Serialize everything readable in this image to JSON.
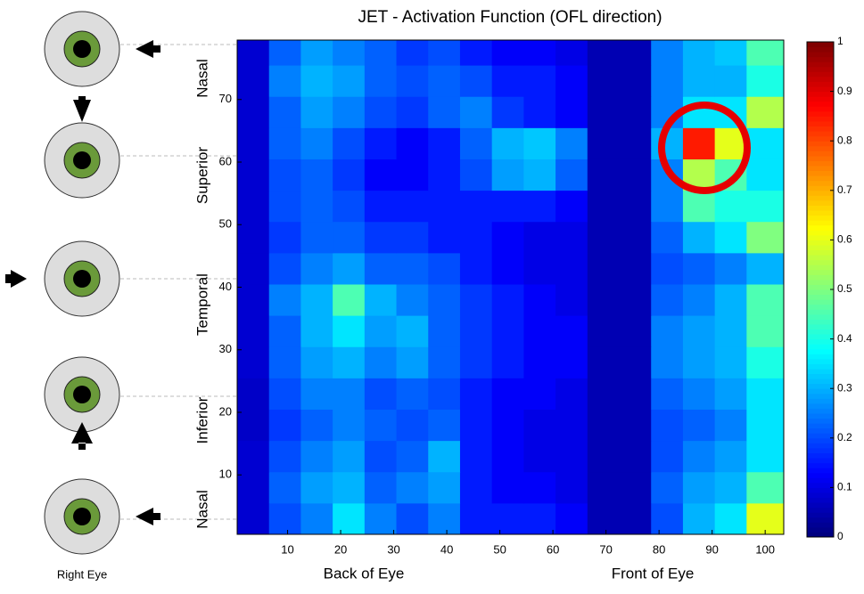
{
  "chart_data": {
    "type": "heatmap",
    "title": "JET - Activation Function (OFL direction)",
    "colormap": "jet",
    "x": [
      3.5,
      9.5,
      15.5,
      21.5,
      27.5,
      33.5,
      39.5,
      45.5,
      51.5,
      57.5,
      63.5,
      69.5,
      75.5,
      81.5,
      87.5,
      93.5,
      99.5
    ],
    "y": [
      3,
      8,
      13,
      18,
      23,
      28,
      33,
      38,
      43,
      48,
      53,
      58,
      63,
      68,
      73,
      78
    ],
    "values": [
      [
        0.08,
        0.2,
        0.25,
        0.35,
        0.25,
        0.2,
        0.25,
        0.15,
        0.15,
        0.15,
        0.12,
        0.05,
        0.05,
        0.2,
        0.3,
        0.35,
        0.6
      ],
      [
        0.08,
        0.22,
        0.28,
        0.3,
        0.22,
        0.25,
        0.28,
        0.15,
        0.12,
        0.12,
        0.1,
        0.05,
        0.05,
        0.22,
        0.28,
        0.3,
        0.45
      ],
      [
        0.08,
        0.2,
        0.25,
        0.28,
        0.2,
        0.22,
        0.3,
        0.15,
        0.12,
        0.1,
        0.1,
        0.05,
        0.05,
        0.2,
        0.25,
        0.28,
        0.35
      ],
      [
        0.07,
        0.18,
        0.22,
        0.25,
        0.22,
        0.2,
        0.22,
        0.15,
        0.12,
        0.1,
        0.1,
        0.05,
        0.05,
        0.2,
        0.22,
        0.25,
        0.35
      ],
      [
        0.07,
        0.2,
        0.25,
        0.25,
        0.2,
        0.22,
        0.2,
        0.15,
        0.12,
        0.12,
        0.1,
        0.05,
        0.05,
        0.22,
        0.25,
        0.28,
        0.35
      ],
      [
        0.08,
        0.22,
        0.28,
        0.3,
        0.25,
        0.28,
        0.22,
        0.18,
        0.15,
        0.12,
        0.12,
        0.05,
        0.05,
        0.25,
        0.28,
        0.3,
        0.4
      ],
      [
        0.08,
        0.22,
        0.3,
        0.35,
        0.28,
        0.3,
        0.22,
        0.18,
        0.15,
        0.12,
        0.12,
        0.05,
        0.05,
        0.25,
        0.28,
        0.3,
        0.45
      ],
      [
        0.08,
        0.25,
        0.3,
        0.45,
        0.3,
        0.25,
        0.22,
        0.18,
        0.15,
        0.12,
        0.1,
        0.05,
        0.05,
        0.22,
        0.25,
        0.3,
        0.45
      ],
      [
        0.08,
        0.2,
        0.25,
        0.28,
        0.22,
        0.22,
        0.2,
        0.15,
        0.12,
        0.1,
        0.1,
        0.05,
        0.05,
        0.2,
        0.22,
        0.25,
        0.3
      ],
      [
        0.08,
        0.18,
        0.22,
        0.22,
        0.18,
        0.18,
        0.15,
        0.15,
        0.12,
        0.1,
        0.1,
        0.05,
        0.05,
        0.22,
        0.3,
        0.35,
        0.5
      ],
      [
        0.08,
        0.2,
        0.22,
        0.2,
        0.15,
        0.15,
        0.15,
        0.15,
        0.15,
        0.15,
        0.12,
        0.05,
        0.05,
        0.25,
        0.45,
        0.4,
        0.4
      ],
      [
        0.08,
        0.2,
        0.22,
        0.18,
        0.12,
        0.12,
        0.15,
        0.2,
        0.28,
        0.3,
        0.22,
        0.05,
        0.05,
        0.25,
        0.55,
        0.45,
        0.35
      ],
      [
        0.08,
        0.22,
        0.25,
        0.2,
        0.15,
        0.12,
        0.15,
        0.22,
        0.3,
        0.32,
        0.25,
        0.05,
        0.05,
        0.3,
        0.85,
        0.6,
        0.35
      ],
      [
        0.08,
        0.22,
        0.28,
        0.25,
        0.2,
        0.18,
        0.22,
        0.25,
        0.18,
        0.15,
        0.12,
        0.05,
        0.05,
        0.25,
        0.35,
        0.35,
        0.55
      ],
      [
        0.08,
        0.25,
        0.3,
        0.28,
        0.22,
        0.2,
        0.22,
        0.2,
        0.15,
        0.15,
        0.12,
        0.05,
        0.05,
        0.25,
        0.3,
        0.3,
        0.4
      ],
      [
        0.08,
        0.22,
        0.28,
        0.25,
        0.22,
        0.18,
        0.2,
        0.15,
        0.12,
        0.12,
        0.1,
        0.05,
        0.05,
        0.25,
        0.3,
        0.32,
        0.45
      ]
    ],
    "xlim": [
      0.5,
      103.5
    ],
    "ylim": [
      0.5,
      79.5
    ],
    "xticks": [
      10,
      20,
      30,
      40,
      50,
      60,
      70,
      80,
      90,
      100
    ],
    "yticks": [
      10,
      20,
      30,
      40,
      50,
      60,
      70
    ],
    "clim": [
      0,
      1
    ],
    "cticks": [
      0,
      0.1,
      0.2,
      0.3,
      0.4,
      0.5,
      0.6,
      0.7,
      0.8,
      0.9,
      1
    ],
    "x_region_labels": [
      "Back of Eye",
      "Front of Eye"
    ],
    "y_region_labels": [
      "Nasal",
      "Inferior",
      "Temporal",
      "Superior",
      "Nasal"
    ],
    "eye_caption": "Right Eye"
  }
}
